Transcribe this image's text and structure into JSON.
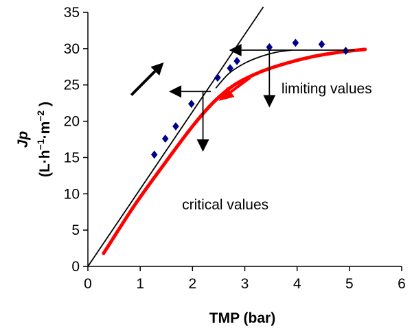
{
  "chart_data": {
    "type": "scatter",
    "title": "",
    "xlabel": "TMP (bar)",
    "ylabel_line1": "Jp",
    "ylabel_line2_parts": [
      "(L·h",
      "−1",
      "·m",
      "−2",
      " )"
    ],
    "xlim": [
      0,
      6
    ],
    "ylim": [
      0,
      35
    ],
    "xticks": [
      0,
      1,
      2,
      3,
      4,
      5,
      6
    ],
    "yticks": [
      0,
      5,
      10,
      15,
      20,
      25,
      30,
      35
    ],
    "xtick_labels": [
      "0",
      "1",
      "2",
      "3",
      "4",
      "5",
      "6"
    ],
    "ytick_labels": [
      "0",
      "5",
      "10",
      "15",
      "20",
      "25",
      "30",
      "35"
    ],
    "grid": false,
    "series": [
      {
        "name": "measured flux",
        "kind": "markers",
        "marker": "diamond",
        "color": "#00008B",
        "x": [
          1.27,
          1.48,
          1.68,
          1.98,
          2.48,
          2.72,
          2.85,
          3.47,
          3.97,
          4.47,
          4.93
        ],
        "y": [
          15.4,
          17.6,
          19.3,
          22.4,
          26.0,
          27.3,
          28.3,
          30.2,
          30.8,
          30.6,
          29.7
        ]
      },
      {
        "name": "straight line",
        "kind": "line",
        "color": "#000000",
        "x": [
          0,
          3.35
        ],
        "y": [
          0,
          35.7
        ]
      },
      {
        "name": "limiting curve",
        "kind": "line",
        "color": "#000000",
        "x": [
          2.45,
          2.7,
          3.0,
          3.3,
          3.6,
          3.9
        ],
        "y": [
          24.6,
          26.6,
          28.0,
          28.9,
          29.5,
          29.8
        ]
      },
      {
        "name": "critical curve",
        "kind": "line",
        "color": "#FF0000",
        "x": [
          0.3,
          0.9,
          1.5,
          2.0,
          2.4,
          2.8,
          3.3,
          3.8,
          4.3,
          4.8,
          5.3
        ],
        "y": [
          1.8,
          8.5,
          14.5,
          19.3,
          22.6,
          25.0,
          26.8,
          28.0,
          28.9,
          29.5,
          29.9
        ]
      }
    ],
    "annotations": [
      {
        "text": "limiting values",
        "x": 3.7,
        "y": 24.5
      },
      {
        "text": "critical values",
        "x": 1.8,
        "y": 8.5
      }
    ],
    "arrows": [
      {
        "name": "upward-diagonal-arrow",
        "x1": 0.83,
        "y1": 23.6,
        "x2": 1.45,
        "y2": 28.1
      },
      {
        "name": "left-arrow-upper",
        "x1": 5.1,
        "y1": 29.8,
        "x2": 2.7,
        "y2": 29.8
      },
      {
        "name": "down-arrow-upper",
        "x1": 3.47,
        "y1": 29.8,
        "x2": 3.47,
        "y2": 21.9
      },
      {
        "name": "left-arrow-lower",
        "x1": 2.35,
        "y1": 24.1,
        "x2": 1.55,
        "y2": 24.1
      },
      {
        "name": "down-arrow-lower",
        "x1": 2.2,
        "y1": 24.1,
        "x2": 2.2,
        "y2": 15.8
      },
      {
        "name": "red-curve-arrow",
        "x1": 3.1,
        "y1": 26.0,
        "x2": 2.5,
        "y2": 22.8,
        "color": "#FF0000"
      }
    ]
  }
}
